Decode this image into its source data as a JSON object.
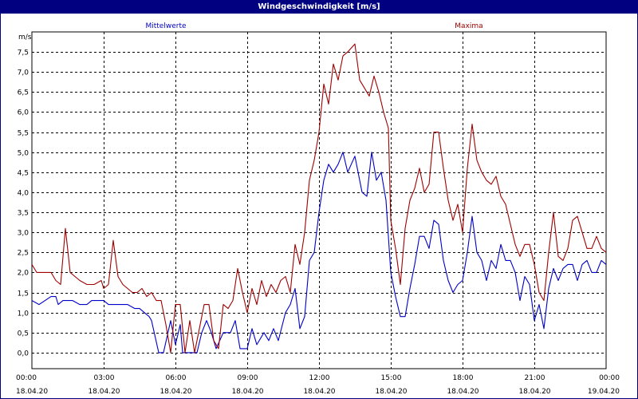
{
  "window": {
    "title": "Windgeschwindigkeit [m/s]"
  },
  "colors": {
    "mean": "#0000c8",
    "max": "#a00000",
    "grid": "#000000",
    "frame": "#000080"
  },
  "chart_data": {
    "type": "line",
    "title": "Windgeschwindigkeit [m/s]",
    "ylabel": "m/s",
    "ylim": [
      -0.4,
      8.0
    ],
    "yticks": [
      0.0,
      0.5,
      1.0,
      1.5,
      2.0,
      2.5,
      3.0,
      3.5,
      4.0,
      4.5,
      5.0,
      5.5,
      6.0,
      6.5,
      7.0,
      7.5
    ],
    "ytick_labels": [
      "0,0",
      "0,5",
      "1,0",
      "1,5",
      "2,0",
      "2,5",
      "3,0",
      "3,5",
      "4,0",
      "4,5",
      "5,0",
      "5,5",
      "6,0",
      "6,5",
      "7,0",
      "7,5"
    ],
    "xlim": [
      0,
      24
    ],
    "xticks": [
      0,
      3,
      6,
      9,
      12,
      15,
      18,
      21,
      24
    ],
    "xtick_time": [
      "00:00",
      "03:00",
      "06:00",
      "09:00",
      "12:00",
      "15:00",
      "18:00",
      "21:00",
      "00:00"
    ],
    "xtick_date": [
      "18.04.20",
      "18.04.20",
      "18.04.20",
      "18.04.20",
      "18.04.20",
      "18.04.20",
      "18.04.20",
      "18.04.20",
      "19.04.20"
    ],
    "grid": true,
    "series": [
      {
        "name": "Mittelwerte",
        "color": "#0000c8",
        "points": [
          [
            0.0,
            1.3
          ],
          [
            0.3,
            1.2
          ],
          [
            0.8,
            1.4
          ],
          [
            1.0,
            1.4
          ],
          [
            1.1,
            1.2
          ],
          [
            1.3,
            1.3
          ],
          [
            1.7,
            1.3
          ],
          [
            2.0,
            1.2
          ],
          [
            2.3,
            1.2
          ],
          [
            2.5,
            1.3
          ],
          [
            3.0,
            1.3
          ],
          [
            3.2,
            1.2
          ],
          [
            3.6,
            1.2
          ],
          [
            4.0,
            1.2
          ],
          [
            4.3,
            1.1
          ],
          [
            4.5,
            1.1
          ],
          [
            4.7,
            1.0
          ],
          [
            4.9,
            0.9
          ],
          [
            5.0,
            0.8
          ],
          [
            5.3,
            0.0
          ],
          [
            5.5,
            0.0
          ],
          [
            5.8,
            0.8
          ],
          [
            6.0,
            0.2
          ],
          [
            6.2,
            0.7
          ],
          [
            6.3,
            0.0
          ],
          [
            6.6,
            0.0
          ],
          [
            6.9,
            0.0
          ],
          [
            7.1,
            0.5
          ],
          [
            7.3,
            0.8
          ],
          [
            7.5,
            0.5
          ],
          [
            7.7,
            0.1
          ],
          [
            8.0,
            0.5
          ],
          [
            8.3,
            0.5
          ],
          [
            8.5,
            0.8
          ],
          [
            8.7,
            0.1
          ],
          [
            9.0,
            0.1
          ],
          [
            9.2,
            0.6
          ],
          [
            9.4,
            0.2
          ],
          [
            9.7,
            0.5
          ],
          [
            9.9,
            0.3
          ],
          [
            10.1,
            0.6
          ],
          [
            10.3,
            0.3
          ],
          [
            10.6,
            1.0
          ],
          [
            10.8,
            1.2
          ],
          [
            11.0,
            1.6
          ],
          [
            11.2,
            0.6
          ],
          [
            11.4,
            0.9
          ],
          [
            11.6,
            2.3
          ],
          [
            11.8,
            2.5
          ],
          [
            12.0,
            3.5
          ],
          [
            12.2,
            4.3
          ],
          [
            12.4,
            4.7
          ],
          [
            12.6,
            4.5
          ],
          [
            12.8,
            4.7
          ],
          [
            13.0,
            5.0
          ],
          [
            13.2,
            4.5
          ],
          [
            13.5,
            4.9
          ],
          [
            13.8,
            4.0
          ],
          [
            14.0,
            3.9
          ],
          [
            14.2,
            5.0
          ],
          [
            14.4,
            4.3
          ],
          [
            14.6,
            4.5
          ],
          [
            14.8,
            3.8
          ],
          [
            15.0,
            2.0
          ],
          [
            15.2,
            1.4
          ],
          [
            15.4,
            0.9
          ],
          [
            15.6,
            0.9
          ],
          [
            15.8,
            1.6
          ],
          [
            16.0,
            2.2
          ],
          [
            16.2,
            2.9
          ],
          [
            16.4,
            2.9
          ],
          [
            16.6,
            2.6
          ],
          [
            16.8,
            3.3
          ],
          [
            17.0,
            3.2
          ],
          [
            17.2,
            2.3
          ],
          [
            17.4,
            1.8
          ],
          [
            17.6,
            1.5
          ],
          [
            17.8,
            1.7
          ],
          [
            18.0,
            1.8
          ],
          [
            18.2,
            2.5
          ],
          [
            18.4,
            3.4
          ],
          [
            18.6,
            2.5
          ],
          [
            18.8,
            2.3
          ],
          [
            19.0,
            1.8
          ],
          [
            19.2,
            2.3
          ],
          [
            19.4,
            2.1
          ],
          [
            19.6,
            2.7
          ],
          [
            19.8,
            2.3
          ],
          [
            20.0,
            2.3
          ],
          [
            20.2,
            2.0
          ],
          [
            20.4,
            1.3
          ],
          [
            20.6,
            1.9
          ],
          [
            20.8,
            1.7
          ],
          [
            21.0,
            0.8
          ],
          [
            21.2,
            1.2
          ],
          [
            21.4,
            0.6
          ],
          [
            21.6,
            1.6
          ],
          [
            21.8,
            2.1
          ],
          [
            22.0,
            1.8
          ],
          [
            22.2,
            2.1
          ],
          [
            22.4,
            2.2
          ],
          [
            22.6,
            2.2
          ],
          [
            22.8,
            1.8
          ],
          [
            23.0,
            2.2
          ],
          [
            23.2,
            2.3
          ],
          [
            23.4,
            2.0
          ],
          [
            23.6,
            2.0
          ],
          [
            23.8,
            2.3
          ],
          [
            24.0,
            2.2
          ]
        ]
      },
      {
        "name": "Maxima",
        "color": "#a00000",
        "points": [
          [
            0.0,
            2.2
          ],
          [
            0.2,
            2.0
          ],
          [
            0.5,
            2.0
          ],
          [
            0.8,
            2.0
          ],
          [
            1.0,
            1.8
          ],
          [
            1.2,
            1.7
          ],
          [
            1.4,
            3.1
          ],
          [
            1.6,
            2.0
          ],
          [
            1.8,
            1.9
          ],
          [
            2.0,
            1.8
          ],
          [
            2.3,
            1.7
          ],
          [
            2.6,
            1.7
          ],
          [
            2.9,
            1.8
          ],
          [
            3.0,
            1.6
          ],
          [
            3.2,
            1.7
          ],
          [
            3.4,
            2.8
          ],
          [
            3.6,
            1.9
          ],
          [
            3.8,
            1.7
          ],
          [
            4.0,
            1.6
          ],
          [
            4.2,
            1.5
          ],
          [
            4.4,
            1.5
          ],
          [
            4.6,
            1.6
          ],
          [
            4.8,
            1.4
          ],
          [
            5.0,
            1.5
          ],
          [
            5.2,
            1.3
          ],
          [
            5.4,
            1.3
          ],
          [
            5.6,
            0.7
          ],
          [
            5.8,
            0.0
          ],
          [
            6.0,
            1.2
          ],
          [
            6.2,
            1.2
          ],
          [
            6.4,
            0.0
          ],
          [
            6.6,
            0.8
          ],
          [
            6.8,
            0.0
          ],
          [
            7.2,
            1.2
          ],
          [
            7.4,
            1.2
          ],
          [
            7.6,
            0.3
          ],
          [
            7.8,
            0.1
          ],
          [
            8.0,
            1.2
          ],
          [
            8.2,
            1.1
          ],
          [
            8.4,
            1.3
          ],
          [
            8.6,
            2.1
          ],
          [
            8.8,
            1.5
          ],
          [
            9.0,
            1.0
          ],
          [
            9.2,
            1.6
          ],
          [
            9.4,
            1.2
          ],
          [
            9.6,
            1.8
          ],
          [
            9.8,
            1.4
          ],
          [
            10.0,
            1.7
          ],
          [
            10.2,
            1.5
          ],
          [
            10.4,
            1.8
          ],
          [
            10.6,
            1.9
          ],
          [
            10.8,
            1.5
          ],
          [
            11.0,
            2.7
          ],
          [
            11.2,
            2.2
          ],
          [
            11.4,
            3.0
          ],
          [
            11.6,
            4.3
          ],
          [
            11.8,
            4.8
          ],
          [
            12.0,
            5.5
          ],
          [
            12.2,
            6.7
          ],
          [
            12.4,
            6.2
          ],
          [
            12.6,
            7.2
          ],
          [
            12.8,
            6.8
          ],
          [
            13.0,
            7.4
          ],
          [
            13.2,
            7.5
          ],
          [
            13.5,
            7.7
          ],
          [
            13.7,
            6.8
          ],
          [
            13.9,
            6.6
          ],
          [
            14.1,
            6.4
          ],
          [
            14.3,
            6.9
          ],
          [
            14.5,
            6.5
          ],
          [
            14.7,
            6.0
          ],
          [
            14.9,
            5.6
          ],
          [
            15.0,
            3.3
          ],
          [
            15.2,
            2.6
          ],
          [
            15.4,
            1.7
          ],
          [
            15.6,
            3.1
          ],
          [
            15.8,
            3.8
          ],
          [
            16.0,
            4.1
          ],
          [
            16.2,
            4.6
          ],
          [
            16.4,
            4.0
          ],
          [
            16.6,
            4.2
          ],
          [
            16.8,
            5.5
          ],
          [
            17.0,
            5.5
          ],
          [
            17.2,
            4.6
          ],
          [
            17.4,
            3.8
          ],
          [
            17.6,
            3.3
          ],
          [
            17.8,
            3.7
          ],
          [
            18.0,
            3.0
          ],
          [
            18.2,
            4.6
          ],
          [
            18.4,
            5.7
          ],
          [
            18.6,
            4.8
          ],
          [
            18.8,
            4.5
          ],
          [
            19.0,
            4.3
          ],
          [
            19.2,
            4.2
          ],
          [
            19.4,
            4.4
          ],
          [
            19.6,
            3.9
          ],
          [
            19.8,
            3.7
          ],
          [
            20.0,
            3.2
          ],
          [
            20.2,
            2.7
          ],
          [
            20.4,
            2.4
          ],
          [
            20.6,
            2.7
          ],
          [
            20.8,
            2.7
          ],
          [
            21.0,
            2.2
          ],
          [
            21.2,
            1.5
          ],
          [
            21.4,
            1.3
          ],
          [
            21.6,
            2.5
          ],
          [
            21.8,
            3.5
          ],
          [
            22.0,
            2.4
          ],
          [
            22.2,
            2.3
          ],
          [
            22.4,
            2.6
          ],
          [
            22.6,
            3.3
          ],
          [
            22.8,
            3.4
          ],
          [
            23.0,
            3.0
          ],
          [
            23.2,
            2.6
          ],
          [
            23.4,
            2.6
          ],
          [
            23.6,
            2.9
          ],
          [
            23.8,
            2.6
          ],
          [
            24.0,
            2.5
          ]
        ]
      }
    ]
  }
}
